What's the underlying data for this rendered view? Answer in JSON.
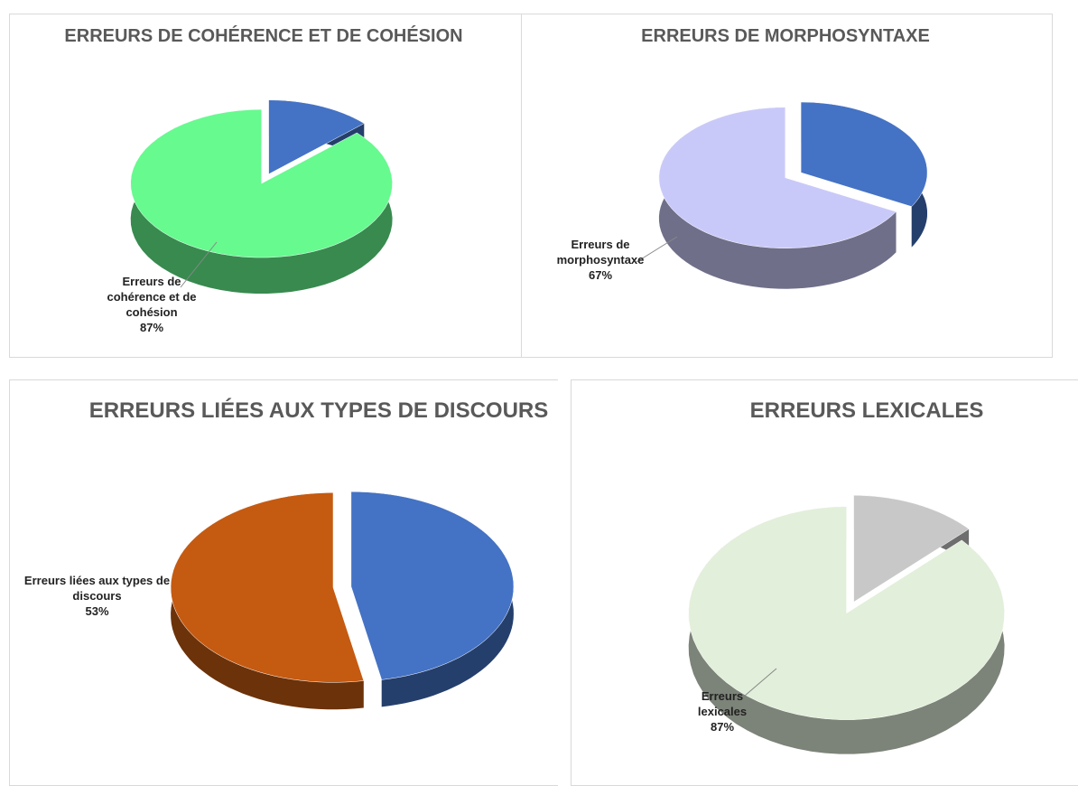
{
  "chart_data": [
    {
      "type": "pie",
      "title": "ERREURS DE COHÉRENCE ET DE COHÉSION",
      "categories": [
        null,
        "Erreurs de cohérence et de cohésion"
      ],
      "values": [
        13,
        87
      ],
      "value_labels": [
        null,
        "87%"
      ],
      "colors": [
        "#4472c4",
        "#66fa8f"
      ]
    },
    {
      "type": "pie",
      "title": "ERREURS DE MORPHOSYNTAXE",
      "categories": [
        null,
        "Erreurs de morphosyntaxe"
      ],
      "values": [
        33,
        67
      ],
      "value_labels": [
        null,
        "67%"
      ],
      "colors": [
        "#4472c4",
        "#c9c9f9"
      ]
    },
    {
      "type": "pie",
      "title": "ERREURS LIÉES AUX TYPES DE DISCOURS",
      "categories": [
        null,
        "Erreurs liées aux types de discours"
      ],
      "values": [
        47,
        53
      ],
      "value_labels": [
        null,
        "53%"
      ],
      "colors": [
        "#4472c4",
        "#c55a11"
      ]
    },
    {
      "type": "pie",
      "title": "ERREURS LEXICALES",
      "categories": [
        null,
        "Erreurs lexicales"
      ],
      "values": [
        13,
        87
      ],
      "value_labels": [
        null,
        "87%"
      ],
      "colors": [
        "#c8c8c8",
        "#e2efda"
      ]
    }
  ]
}
